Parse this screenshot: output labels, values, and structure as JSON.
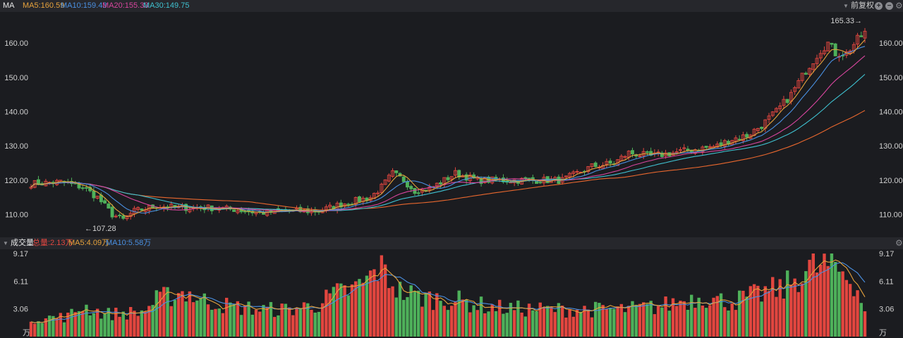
{
  "header": {
    "indicator": "MA",
    "ma5": "MA5:160.59",
    "ma10": "MA10:159.43",
    "ma20": "MA20:155.33",
    "ma30": "MA30:149.75",
    "adjust": "前复权",
    "plus_icon": "plus-icon",
    "minus_icon": "minus-icon",
    "gear_icon": "gear-icon"
  },
  "volume_header": {
    "label": "成交量",
    "total": "总量:2.13万",
    "ma5": "MA5:4.09万",
    "ma10": "MA10:5.58万",
    "gear_icon": "gear-icon"
  },
  "colors": {
    "up": "#e2463f",
    "down": "#4eb05a",
    "ma5": "#e6a23c",
    "ma10": "#4a90e2",
    "ma20": "#d8459e",
    "ma30": "#3fc1d0",
    "long": "#e8672e"
  },
  "chart_data": [
    {
      "type": "candlestick",
      "ylim": [
        105,
        167
      ],
      "yticks": [
        "110.00",
        "120.00",
        "130.00",
        "140.00",
        "150.00",
        "160.00"
      ],
      "ytick_values": [
        110,
        120,
        130,
        140,
        150,
        160
      ],
      "annotations": {
        "max": "165.33→",
        "min": "←107.28"
      },
      "anchors": [
        [
          0,
          119
        ],
        [
          8,
          119.5
        ],
        [
          14,
          118
        ],
        [
          18,
          115
        ],
        [
          22,
          110
        ],
        [
          25,
          108.5
        ],
        [
          28,
          111
        ],
        [
          34,
          112.5
        ],
        [
          40,
          112
        ],
        [
          48,
          112
        ],
        [
          55,
          111.5
        ],
        [
          62,
          110.5
        ],
        [
          70,
          111
        ],
        [
          78,
          111
        ],
        [
          84,
          113
        ],
        [
          88,
          114
        ],
        [
          92,
          115
        ],
        [
          95,
          118
        ],
        [
          98,
          122
        ],
        [
          101,
          120
        ],
        [
          104,
          117
        ],
        [
          108,
          117.5
        ],
        [
          112,
          120
        ],
        [
          115,
          122
        ],
        [
          118,
          121
        ],
        [
          121,
          120
        ],
        [
          126,
          120
        ],
        [
          130,
          120
        ],
        [
          135,
          120
        ],
        [
          140,
          120
        ],
        [
          144,
          120
        ],
        [
          148,
          122
        ],
        [
          152,
          124
        ],
        [
          158,
          125
        ],
        [
          162,
          128
        ],
        [
          168,
          127
        ],
        [
          174,
          128
        ],
        [
          180,
          129
        ],
        [
          186,
          130
        ],
        [
          190,
          132
        ],
        [
          194,
          133
        ],
        [
          198,
          136
        ],
        [
          202,
          140
        ],
        [
          206,
          145
        ],
        [
          210,
          152
        ],
        [
          214,
          158
        ],
        [
          216,
          160
        ],
        [
          218,
          157
        ],
        [
          221,
          157
        ],
        [
          224,
          161
        ],
        [
          226,
          163
        ]
      ],
      "candles_count": 227,
      "max_label_value": 165.33,
      "min_label_value": 107.28
    },
    {
      "type": "bar",
      "title": "成交量",
      "ylim": [
        0,
        9.17
      ],
      "yticks": [
        "3.06",
        "6.11",
        "9.17"
      ],
      "ytick_values": [
        3.06,
        6.11,
        9.17
      ],
      "unit": "万",
      "anchors": [
        [
          0,
          2
        ],
        [
          10,
          2.2
        ],
        [
          14,
          3.4
        ],
        [
          20,
          2.5
        ],
        [
          30,
          2.7
        ],
        [
          34,
          4
        ],
        [
          38,
          4.6
        ],
        [
          42,
          5
        ],
        [
          46,
          4
        ],
        [
          50,
          3.8
        ],
        [
          54,
          3.3
        ],
        [
          58,
          3.2
        ],
        [
          62,
          3
        ],
        [
          70,
          3
        ],
        [
          74,
          3.3
        ],
        [
          78,
          3.6
        ],
        [
          82,
          4.6
        ],
        [
          88,
          5.3
        ],
        [
          92,
          6.5
        ],
        [
          94,
          7.6
        ],
        [
          96,
          7
        ],
        [
          100,
          5
        ],
        [
          104,
          4.5
        ],
        [
          108,
          4.2
        ],
        [
          112,
          4.2
        ],
        [
          118,
          3.8
        ],
        [
          124,
          3.3
        ],
        [
          130,
          3.1
        ],
        [
          140,
          3
        ],
        [
          150,
          3
        ],
        [
          160,
          3
        ],
        [
          170,
          3.3
        ],
        [
          176,
          3.9
        ],
        [
          182,
          4.5
        ],
        [
          186,
          4
        ],
        [
          190,
          3.9
        ],
        [
          196,
          4.5
        ],
        [
          200,
          5
        ],
        [
          204,
          5.3
        ],
        [
          208,
          6.8
        ],
        [
          212,
          7.6
        ],
        [
          216,
          7.8
        ],
        [
          220,
          7.2
        ],
        [
          223,
          6.2
        ],
        [
          226,
          3
        ]
      ]
    }
  ]
}
